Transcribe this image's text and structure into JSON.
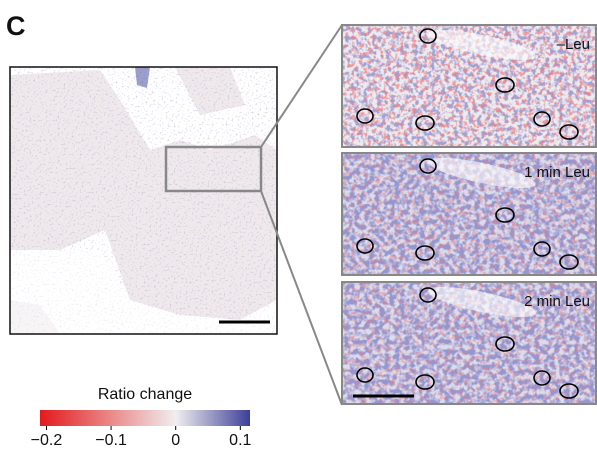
{
  "panel_label": "C",
  "insets": [
    {
      "label": "–Leu"
    },
    {
      "label": "1 min Leu"
    },
    {
      "label": "2 min Leu"
    }
  ],
  "colorbar": {
    "title": "Ratio change",
    "lim": [
      -0.21,
      0.115
    ],
    "ticks": [
      {
        "value": -0.2,
        "label": "−0.2"
      },
      {
        "value": -0.1,
        "label": "−0.1"
      },
      0,
      0.1
    ],
    "stops": [
      {
        "value": -0.21,
        "color": "#e31a1c"
      },
      {
        "value": 0,
        "color": "#f0eeee"
      },
      {
        "value": 0.115,
        "color": "#3d3f98"
      }
    ]
  }
}
